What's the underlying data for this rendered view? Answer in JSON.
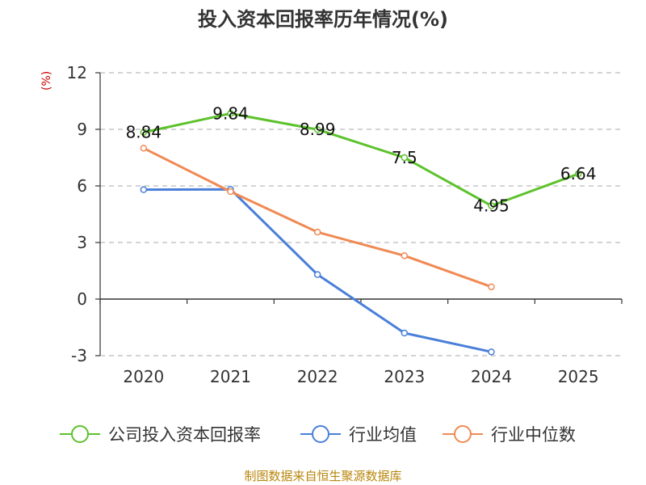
{
  "title": "投入资本回报率历年情况(%)",
  "footer": "制图数据来自恒生聚源数据库",
  "colors": {
    "company": "#5cc22b",
    "avg": "#4a7fd9",
    "median": "#f08a54",
    "ylabel": "#cc0000",
    "footer": "#b8860b"
  },
  "chart_data": {
    "type": "line",
    "title": "投入资本回报率历年情况(%)",
    "ylabel": "(%)",
    "ylim": [
      -3,
      12
    ],
    "yticks": [
      12,
      9,
      6,
      3,
      0,
      -3
    ],
    "categories": [
      "2020",
      "2021",
      "2022",
      "2023",
      "2024",
      "2025"
    ],
    "grid": true,
    "legend": "bottom",
    "series": [
      {
        "name": "公司投入资本回报率",
        "values": [
          8.84,
          9.84,
          8.99,
          7.5,
          4.95,
          6.64
        ],
        "labels": [
          "8.84",
          "9.84",
          "8.99",
          "7.5",
          "4.95",
          "6.64"
        ]
      },
      {
        "name": "行业均值",
        "values": [
          5.8,
          5.82,
          1.3,
          -1.8,
          -2.8,
          null
        ]
      },
      {
        "name": "行业中位数",
        "values": [
          8.0,
          5.7,
          3.55,
          2.3,
          0.65,
          null
        ]
      }
    ]
  }
}
